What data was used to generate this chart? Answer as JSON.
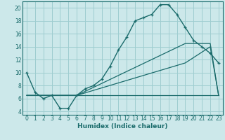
{
  "xlabel": "Humidex (Indice chaleur)",
  "background_color": "#cce8ea",
  "grid_color": "#9ecdd0",
  "line_color": "#1a6b6b",
  "xlim": [
    -0.5,
    23.5
  ],
  "ylim": [
    3.5,
    21.0
  ],
  "xticks": [
    0,
    1,
    2,
    3,
    4,
    5,
    6,
    7,
    8,
    9,
    10,
    11,
    12,
    13,
    14,
    15,
    16,
    17,
    18,
    19,
    20,
    21,
    22,
    23
  ],
  "yticks": [
    4,
    6,
    8,
    10,
    12,
    14,
    16,
    18,
    20
  ],
  "series1_x": [
    0,
    1,
    2,
    3,
    4,
    5,
    6,
    7,
    8,
    9,
    10,
    11,
    12,
    13,
    14,
    15,
    16,
    17,
    18,
    19,
    20,
    21,
    22,
    23
  ],
  "series1_y": [
    10,
    7,
    6,
    6.5,
    4.5,
    4.5,
    6.5,
    7.5,
    8,
    9,
    11,
    13.5,
    15.5,
    18,
    18.5,
    19,
    20.5,
    20.5,
    19,
    17,
    15,
    14,
    13,
    11.5
  ],
  "series2_x": [
    0,
    22,
    23
  ],
  "series2_y": [
    6.5,
    6.5,
    6.5
  ],
  "series3_x": [
    0,
    6,
    19,
    22,
    23
  ],
  "series3_y": [
    6.5,
    6.5,
    14.5,
    14.5,
    6.5
  ],
  "series4_x": [
    0,
    6,
    19,
    22,
    23
  ],
  "series4_y": [
    6.5,
    6.5,
    11.5,
    14.0,
    6.5
  ]
}
